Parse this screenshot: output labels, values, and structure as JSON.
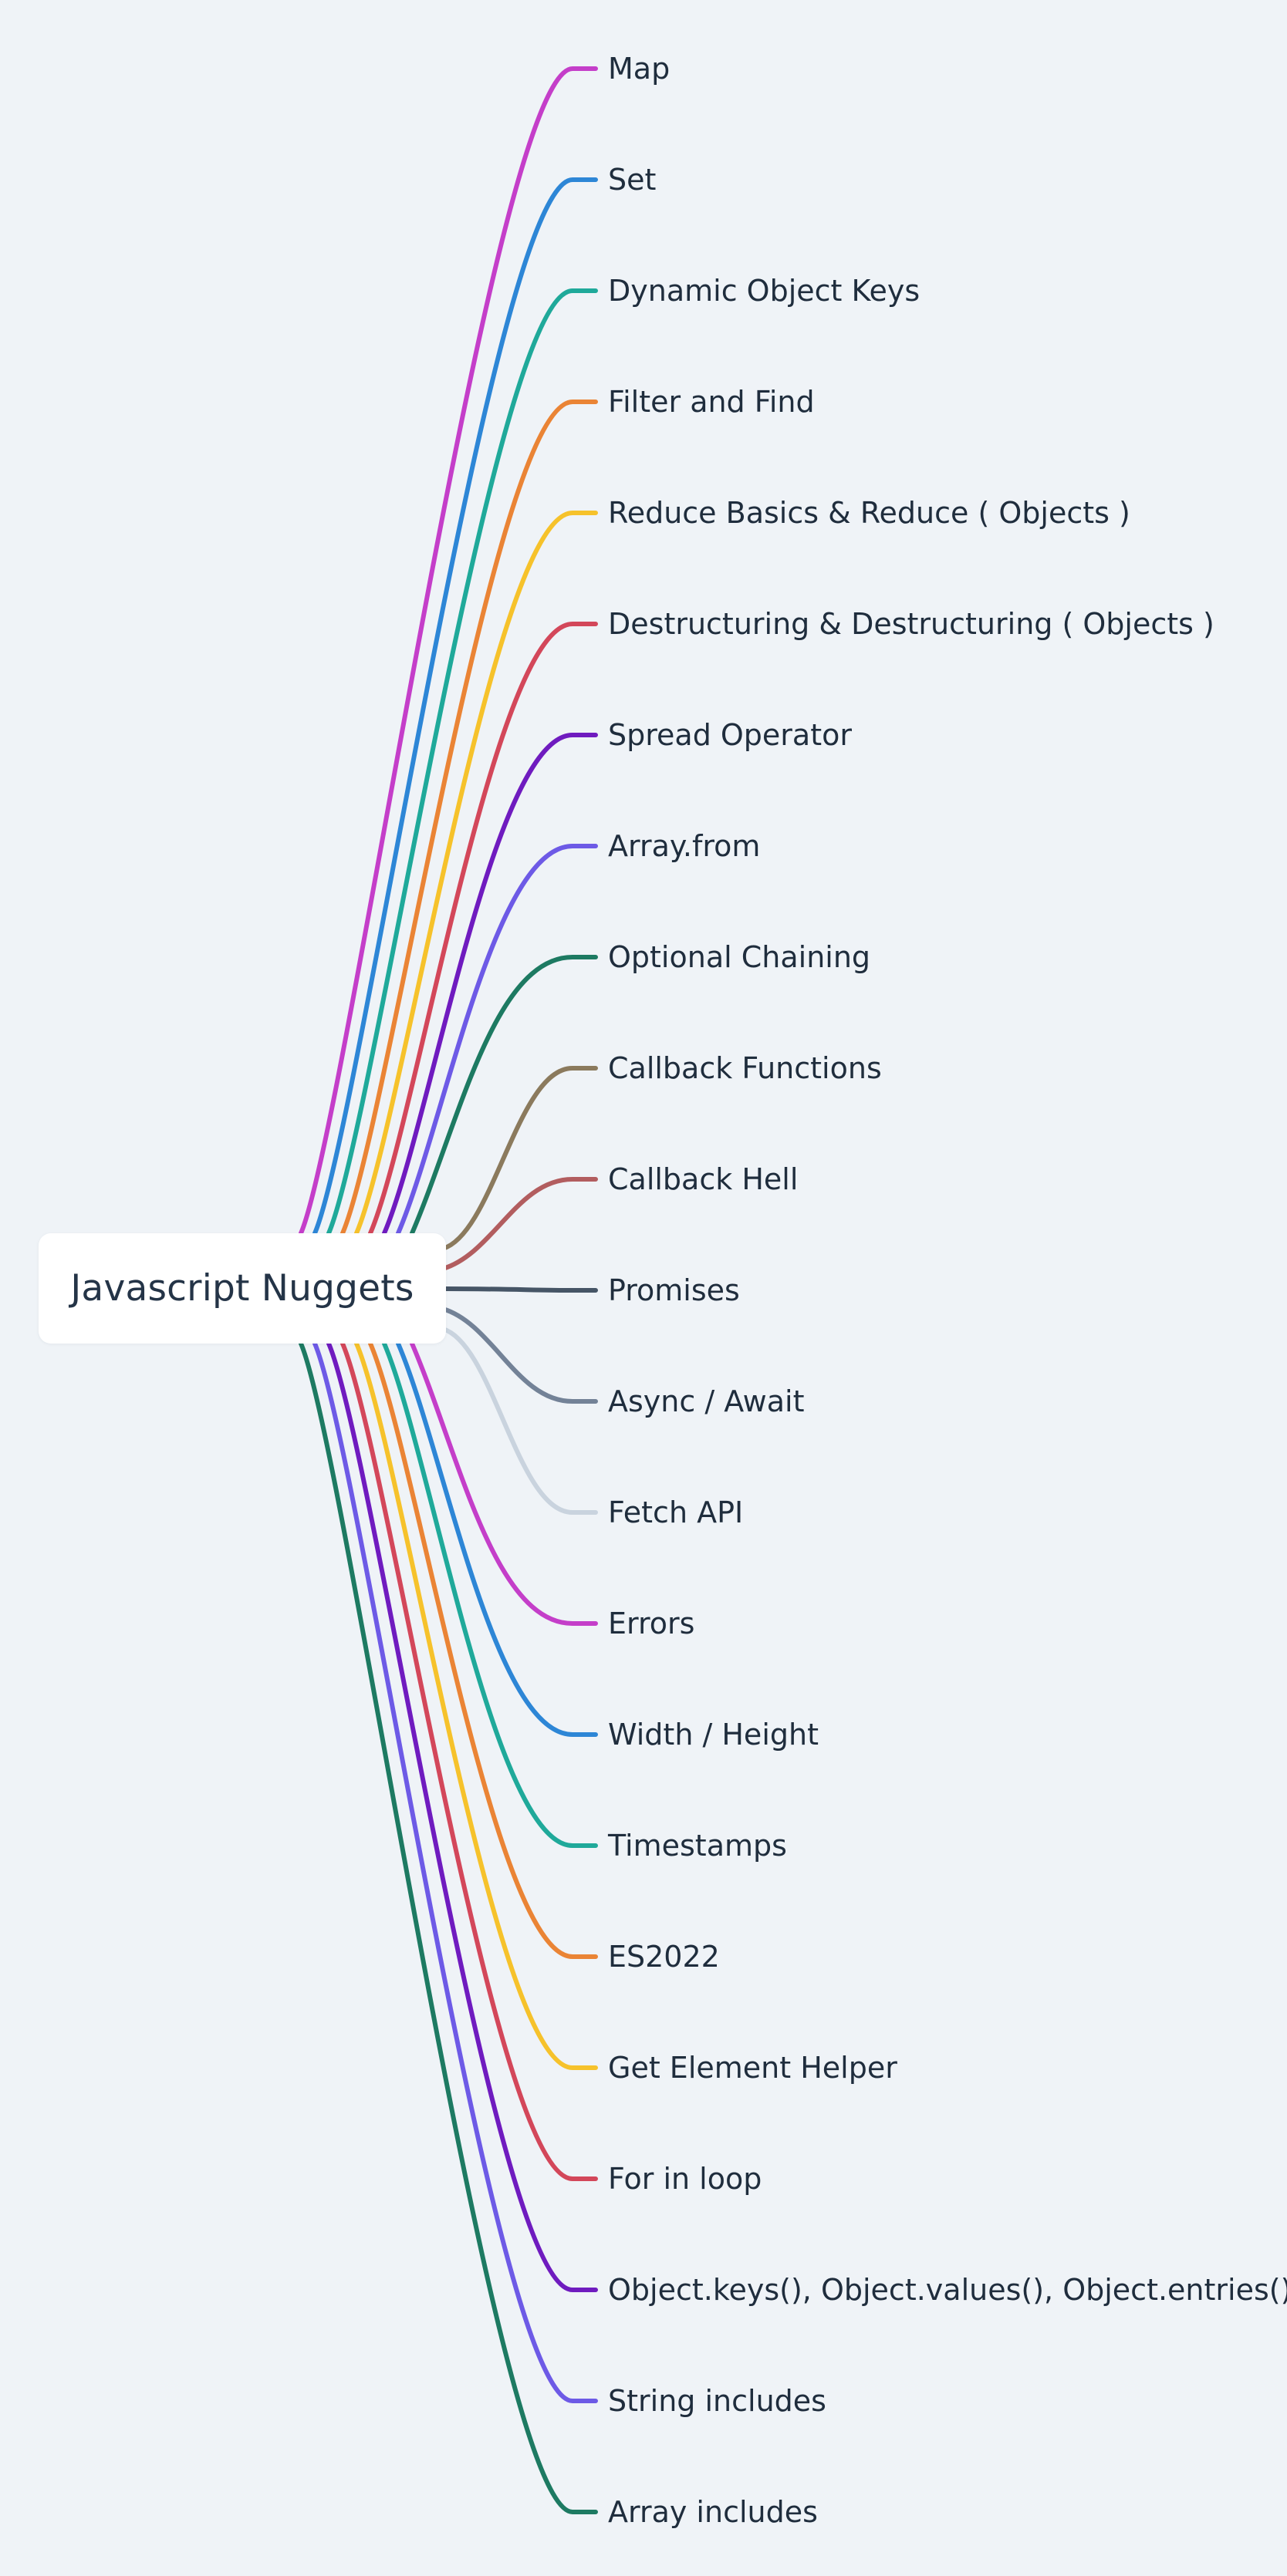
{
  "root": {
    "label": "Javascript Nuggets"
  },
  "topics": [
    {
      "label": "Map",
      "color": "#c43ec9"
    },
    {
      "label": "Set",
      "color": "#2d86d6"
    },
    {
      "label": "Dynamic Object Keys",
      "color": "#1fa99a"
    },
    {
      "label": "Filter and Find",
      "color": "#ea8435"
    },
    {
      "label": "Reduce Basics & Reduce ( Objects )",
      "color": "#f6c22b"
    },
    {
      "label": "Destructuring & Destructuring ( Objects )",
      "color": "#d3475a"
    },
    {
      "label": "Spread Operator",
      "color": "#6f1bbf"
    },
    {
      "label": "Array.from",
      "color": "#6d5ae6"
    },
    {
      "label": "Optional Chaining",
      "color": "#1d7a62"
    },
    {
      "label": "Callback Functions",
      "color": "#8b7a5d"
    },
    {
      "label": "Callback Hell",
      "color": "#b25d5f"
    },
    {
      "label": "Promises",
      "color": "#465566"
    },
    {
      "label": "Async / Await",
      "color": "#738297"
    },
    {
      "label": "Fetch API",
      "color": "#c9d3de"
    },
    {
      "label": "Errors",
      "color": "#c43ec9"
    },
    {
      "label": "Width / Height",
      "color": "#2d86d6"
    },
    {
      "label": "Timestamps",
      "color": "#1fa99a"
    },
    {
      "label": "ES2022",
      "color": "#ea8435"
    },
    {
      "label": "Get Element Helper",
      "color": "#f6c22b"
    },
    {
      "label": "For in loop",
      "color": "#d3475a"
    },
    {
      "label": "Object.keys(), Object.values(), Object.entries()",
      "color": "#6f1bbf"
    },
    {
      "label": "String includes",
      "color": "#6d5ae6"
    },
    {
      "label": "Array includes",
      "color": "#1d7a62"
    }
  ]
}
